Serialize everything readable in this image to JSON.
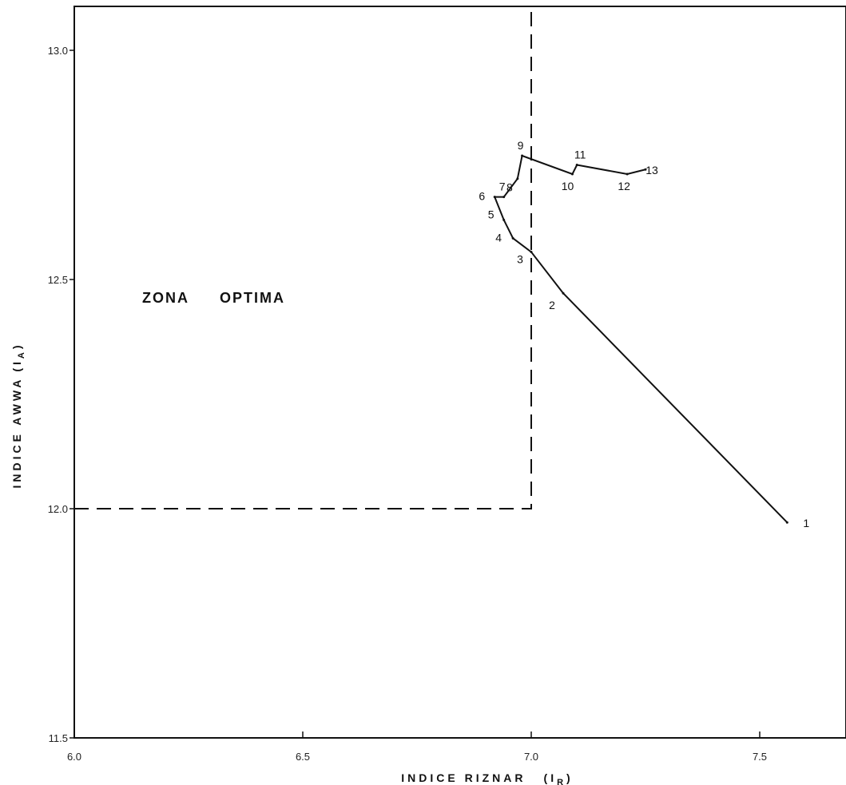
{
  "chart_data": {
    "type": "line",
    "title": "",
    "xlabel": "INDICE RIZNAR",
    "xlabel_symbol": "I",
    "xlabel_subscript": "R",
    "ylabel": "INDICE AWWA",
    "ylabel_symbol": "I",
    "ylabel_subscript": "A",
    "xlim": [
      6.0,
      7.7
    ],
    "ylim": [
      11.5,
      13.1
    ],
    "x_ticks": [
      {
        "value": 6.0,
        "label": "6.0"
      },
      {
        "value": 6.5,
        "label": "6.5"
      },
      {
        "value": 7.0,
        "label": "7.0"
      },
      {
        "value": 7.5,
        "label": "7.5"
      }
    ],
    "y_ticks": [
      {
        "value": 11.5,
        "label": "11.5"
      },
      {
        "value": 12.0,
        "label": "12.0"
      },
      {
        "value": 12.5,
        "label": "12.5"
      },
      {
        "value": 13.0,
        "label": "13.0"
      }
    ],
    "grid": false,
    "series": [
      {
        "points": [
          {
            "label": "1",
            "x": 7.56,
            "y": 11.97
          },
          {
            "label": "2",
            "x": 7.07,
            "y": 12.47
          },
          {
            "label": "3",
            "x": 7.0,
            "y": 12.56
          },
          {
            "label": "4",
            "x": 6.96,
            "y": 12.59
          },
          {
            "label": "5",
            "x": 6.94,
            "y": 12.63
          },
          {
            "label": "6",
            "x": 6.92,
            "y": 12.68
          },
          {
            "label": "7",
            "x": 6.94,
            "y": 12.68
          },
          {
            "label": "8",
            "x": 6.97,
            "y": 12.72
          },
          {
            "label": "9",
            "x": 6.98,
            "y": 12.77
          },
          {
            "label": "10",
            "x": 7.09,
            "y": 12.73
          },
          {
            "label": "11",
            "x": 7.1,
            "y": 12.75
          },
          {
            "label": "12",
            "x": 7.21,
            "y": 12.73
          },
          {
            "label": "13",
            "x": 7.25,
            "y": 12.74
          }
        ]
      }
    ],
    "zone": {
      "label": "ZONA OPTIMA",
      "x_max": 7.0,
      "y_min": 12.0
    }
  }
}
